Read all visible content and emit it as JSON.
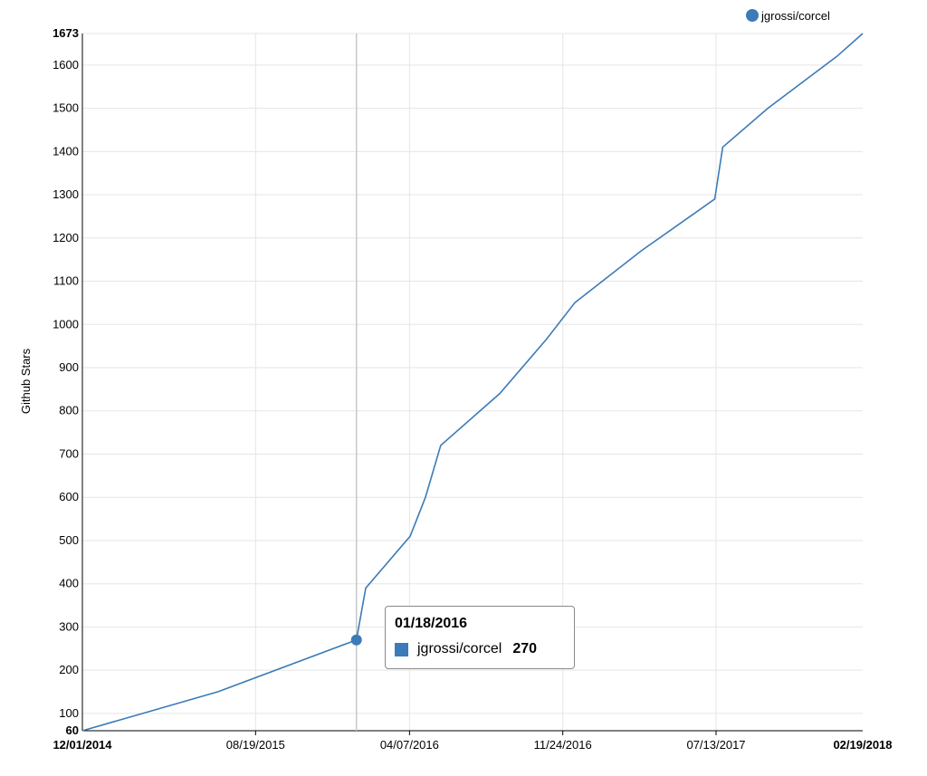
{
  "chart_data": {
    "type": "line",
    "ylabel": "Github Stars",
    "ylim": [
      60,
      1673
    ],
    "y_ticks": [
      100,
      200,
      300,
      400,
      500,
      600,
      700,
      800,
      900,
      1000,
      1100,
      1200,
      1300,
      1400,
      1500,
      1600
    ],
    "y_min_label": "60",
    "y_max_label": "1673",
    "xlim": [
      "2014-12-01",
      "2018-02-19"
    ],
    "x_ticks": [
      {
        "date": "2014-12-01",
        "label": "12/01/2014",
        "bold": true
      },
      {
        "date": "2015-08-19",
        "label": "08/19/2015",
        "bold": false
      },
      {
        "date": "2016-04-07",
        "label": "04/07/2016",
        "bold": false
      },
      {
        "date": "2016-11-24",
        "label": "11/24/2016",
        "bold": false
      },
      {
        "date": "2017-07-13",
        "label": "07/13/2017",
        "bold": false
      },
      {
        "date": "2018-02-19",
        "label": "02/19/2018",
        "bold": true
      }
    ],
    "grid": true,
    "legend_position": "top-right",
    "series": [
      {
        "name": "jgrossi/corcel",
        "color": "#3c7bb7",
        "points": [
          [
            "2014-12-01",
            60
          ],
          [
            "2015-06-23",
            150
          ],
          [
            "2016-01-18",
            270
          ],
          [
            "2016-02-01",
            390
          ],
          [
            "2016-04-08",
            510
          ],
          [
            "2016-05-01",
            600
          ],
          [
            "2016-05-24",
            720
          ],
          [
            "2016-08-21",
            840
          ],
          [
            "2016-10-30",
            965
          ],
          [
            "2016-12-12",
            1050
          ],
          [
            "2017-03-22",
            1170
          ],
          [
            "2017-07-11",
            1290
          ],
          [
            "2017-07-23",
            1410
          ],
          [
            "2017-09-29",
            1500
          ],
          [
            "2018-01-11",
            1620
          ],
          [
            "2018-02-19",
            1673
          ]
        ]
      }
    ],
    "hover": {
      "date": "2016-01-18",
      "date_label": "01/18/2016",
      "series": "jgrossi/corcel",
      "value": 270,
      "value_label": "270"
    }
  }
}
